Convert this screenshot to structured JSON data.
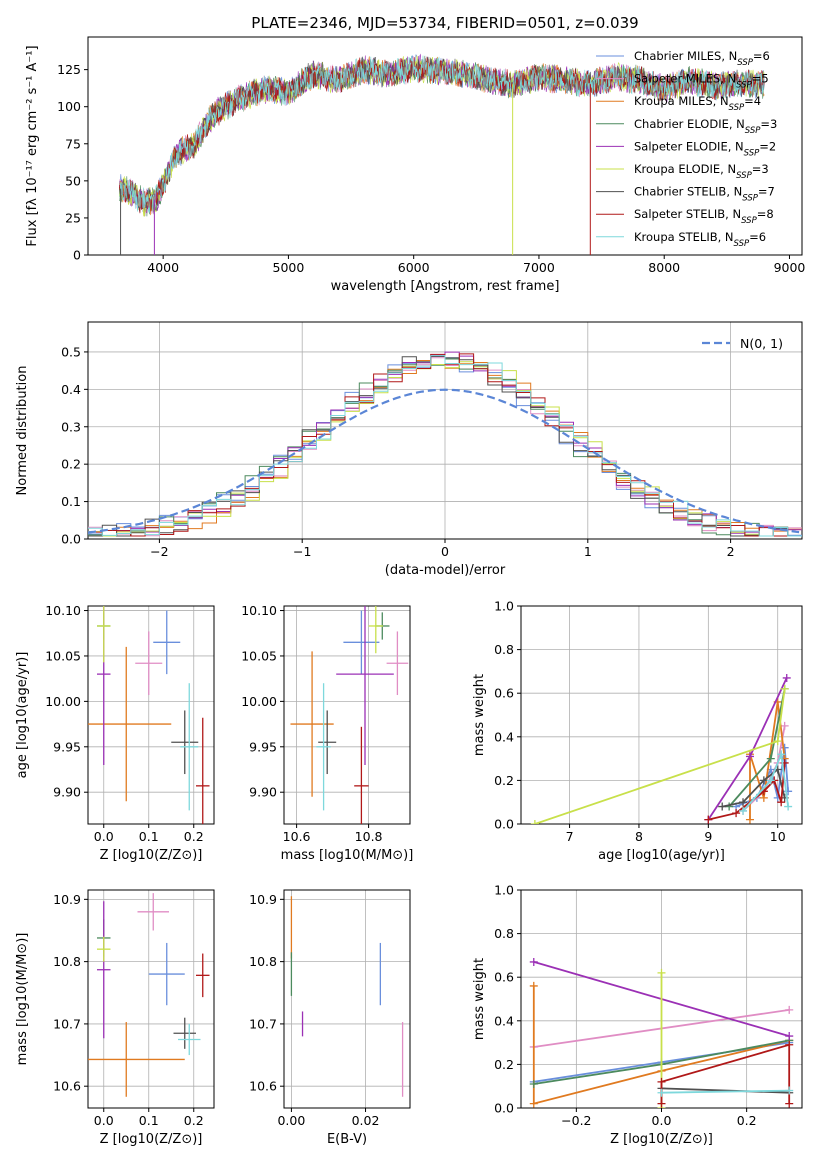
{
  "title": "PLATE=2346, MJD=53734, FIBERID=0501, z=0.039",
  "models": [
    {
      "name": "Chabrier MILES, N_SSP=6",
      "base": "Chabrier MILES, N",
      "nssp": "=6",
      "color": "#6a8fdc"
    },
    {
      "name": "Salpeter MILES, N_SSP=5",
      "base": "Salpeter MILES, N",
      "nssp": "=5",
      "color": "#e08dc4"
    },
    {
      "name": "Kroupa MILES, N_SSP=4",
      "base": "Kroupa MILES, N",
      "nssp": "=4",
      "color": "#e07a20"
    },
    {
      "name": "Chabrier ELODIE, N_SSP=3",
      "base": "Chabrier ELODIE, N",
      "nssp": "=3",
      "color": "#4c8a5e"
    },
    {
      "name": "Salpeter ELODIE, N_SSP=2",
      "base": "Salpeter ELODIE, N",
      "nssp": "=2",
      "color": "#9b30b5"
    },
    {
      "name": "Kroupa ELODIE, N_SSP=3",
      "base": "Kroupa ELODIE, N",
      "nssp": "=3",
      "color": "#c8e04a"
    },
    {
      "name": "Chabrier STELIB, N_SSP=7",
      "base": "Chabrier STELIB, N",
      "nssp": "=7",
      "color": "#505050"
    },
    {
      "name": "Salpeter STELIB, N_SSP=8",
      "base": "Salpeter STELIB, N",
      "nssp": "=8",
      "color": "#b01818"
    },
    {
      "name": "Kroupa STELIB, N_SSP=6",
      "base": "Kroupa STELIB, N",
      "nssp": "=6",
      "color": "#7ed8dc"
    }
  ],
  "chart_data": [
    {
      "type": "line",
      "panel": "spectrum",
      "xlabel": "wavelength [Angstrom, rest frame]",
      "ylabel": "Flux [fλ 10⁻¹⁷ erg cm⁻² s⁻¹ A⁻¹]",
      "xlim": [
        3400,
        9100
      ],
      "ylim": [
        0,
        147
      ],
      "xticks": [
        4000,
        5000,
        6000,
        7000,
        8000,
        9000
      ],
      "yticks": [
        0,
        25,
        50,
        75,
        100,
        125
      ],
      "x": [
        3650,
        3750,
        3850,
        3950,
        4100,
        4250,
        4400,
        4600,
        4800,
        5000,
        5200,
        5400,
        5600,
        5800,
        6000,
        6200,
        6400,
        6600,
        6800,
        7000,
        7200,
        7400,
        7600,
        7800,
        8000,
        8200,
        8400,
        8600,
        8800
      ],
      "y": [
        45,
        42,
        35,
        38,
        68,
        75,
        95,
        105,
        112,
        110,
        122,
        118,
        125,
        122,
        126,
        124,
        122,
        118,
        115,
        120,
        118,
        115,
        120,
        118,
        112,
        118,
        114,
        116,
        115
      ],
      "drops": [
        {
          "x": 3660,
          "to": 0
        },
        {
          "x": 3930,
          "to": 0
        },
        {
          "x": 6790,
          "to": 0
        },
        {
          "x": 7410,
          "to": 0
        }
      ],
      "legend": "top-right",
      "grid": false
    },
    {
      "type": "bar",
      "panel": "residual-histogram",
      "xlabel": "(data-model)/error",
      "ylabel": "Normed distribution",
      "xlim": [
        -2.5,
        2.5
      ],
      "ylim": [
        0,
        0.58
      ],
      "xticks": [
        -2,
        -1,
        0,
        1,
        2
      ],
      "yticks": [
        0.0,
        0.1,
        0.2,
        0.3,
        0.4,
        0.5
      ],
      "bin_width": 0.1,
      "histogram_shape": "histograms per model follow a normal curve of sigma 0.85 with peak about 0.48",
      "reference_curve": {
        "label": "N(0, 1)",
        "mean": 0,
        "sigma": 1
      },
      "grid": true
    },
    {
      "type": "scatter",
      "panel": "age-vs-Z",
      "xlabel": "Z [log10(Z/Z⊙)]",
      "ylabel": "age  [log10(age/yr)]",
      "xlim": [
        -0.035,
        0.245
      ],
      "ylim": [
        9.865,
        10.105
      ],
      "xticks": [
        0.0,
        0.1,
        0.2
      ],
      "yticks": [
        9.9,
        9.95,
        10.0,
        10.05,
        10.1
      ],
      "points": [
        {
          "x": 0.14,
          "xerr": 0.03,
          "y": 10.065,
          "yerr": 0.035
        },
        {
          "x": 0.1,
          "xerr": 0.03,
          "y": 10.042,
          "yerr": 0.035
        },
        {
          "x": 0.05,
          "xerr": 0.1,
          "y": 9.975,
          "yerr": 0.085
        },
        {
          "x": 0.0,
          "xerr": 0.015,
          "y": 10.083,
          "yerr": 0.015
        },
        {
          "x": 0.0,
          "xerr": 0.015,
          "y": 10.03,
          "yerr": 0.1
        },
        {
          "x": 0.0,
          "xerr": 0.015,
          "y": 10.083,
          "yerr": 0.04
        },
        {
          "x": 0.18,
          "xerr": 0.03,
          "y": 9.955,
          "yerr": 0.035
        },
        {
          "x": 0.22,
          "xerr": 0.015,
          "y": 9.907,
          "yerr": 0.075
        },
        {
          "x": 0.19,
          "xerr": 0.02,
          "y": 9.95,
          "yerr": 0.07
        }
      ],
      "grid": true
    },
    {
      "type": "scatter",
      "panel": "age-vs-mass",
      "xlabel": "mass [log10(M/M⊙)]",
      "ylabel": "",
      "xlim": [
        10.565,
        10.915
      ],
      "ylim": [
        9.865,
        10.105
      ],
      "xticks": [
        10.6,
        10.8
      ],
      "yticks": [
        9.9,
        9.95,
        10.0,
        10.05,
        10.1
      ],
      "points": [
        {
          "x": 10.78,
          "xerr": 0.05,
          "y": 10.065,
          "yerr": 0.035
        },
        {
          "x": 10.88,
          "xerr": 0.03,
          "y": 10.042,
          "yerr": 0.035
        },
        {
          "x": 10.643,
          "xerr": 0.06,
          "y": 9.975,
          "yerr": 0.08
        },
        {
          "x": 10.838,
          "xerr": 0.02,
          "y": 10.083,
          "yerr": 0.015
        },
        {
          "x": 10.79,
          "xerr": 0.08,
          "y": 10.03,
          "yerr": 0.1
        },
        {
          "x": 10.82,
          "xerr": 0.02,
          "y": 10.083,
          "yerr": 0.03
        },
        {
          "x": 10.685,
          "xerr": 0.025,
          "y": 9.955,
          "yerr": 0.035
        },
        {
          "x": 10.78,
          "xerr": 0.02,
          "y": 9.907,
          "yerr": 0.065
        },
        {
          "x": 10.675,
          "xerr": 0.02,
          "y": 9.95,
          "yerr": 0.07
        }
      ],
      "grid": true
    },
    {
      "type": "line",
      "panel": "mass-weight-vs-age",
      "xlabel": "age  [log10(age/yr)]",
      "ylabel": "mass weight",
      "xlim": [
        6.3,
        10.35
      ],
      "ylim": [
        0,
        1.0
      ],
      "xticks": [
        7,
        8,
        9,
        10
      ],
      "yticks": [
        0.0,
        0.2,
        0.4,
        0.6,
        0.8,
        1.0
      ],
      "series": [
        {
          "x": [
            9.4,
            9.7,
            9.9,
            10.0,
            10.1,
            10.15
          ],
          "y": [
            0.08,
            0.12,
            0.25,
            0.12,
            0.35,
            0.15
          ]
        },
        {
          "x": [
            9.5,
            9.8,
            10.0,
            10.1
          ],
          "y": [
            0.06,
            0.15,
            0.28,
            0.45
          ]
        },
        {
          "x": [
            9.6,
            9.6,
            9.8,
            10.0,
            10.1
          ],
          "y": [
            0.02,
            0.32,
            0.12,
            0.56,
            0.3
          ]
        },
        {
          "x": [
            9.3,
            9.9,
            10.1
          ],
          "y": [
            0.08,
            0.3,
            0.62
          ]
        },
        {
          "x": [
            9.0,
            9.6,
            10.13
          ],
          "y": [
            0.02,
            0.31,
            0.67
          ]
        },
        {
          "x": [
            6.5,
            10.0,
            10.1
          ],
          "y": [
            0.0,
            0.38,
            0.62
          ]
        },
        {
          "x": [
            9.2,
            9.5,
            9.8,
            10.0,
            10.1
          ],
          "y": [
            0.08,
            0.1,
            0.2,
            0.25,
            0.12
          ]
        },
        {
          "x": [
            9.0,
            9.4,
            9.8,
            9.95,
            10.05,
            10.1
          ],
          "y": [
            0.02,
            0.05,
            0.15,
            0.2,
            0.1,
            0.28
          ]
        },
        {
          "x": [
            9.5,
            9.9,
            10.05,
            10.15
          ],
          "y": [
            0.06,
            0.2,
            0.32,
            0.08
          ]
        }
      ],
      "grid": true
    },
    {
      "type": "scatter",
      "panel": "mass-vs-Z",
      "xlabel": "Z [log10(Z/Z⊙)]",
      "ylabel": "mass [log10(M/M⊙)]",
      "xlim": [
        -0.035,
        0.245
      ],
      "ylim": [
        10.565,
        10.915
      ],
      "xticks": [
        0.0,
        0.1,
        0.2
      ],
      "yticks": [
        10.6,
        10.7,
        10.8,
        10.9
      ],
      "points": [
        {
          "x": 0.14,
          "xerr": 0.04,
          "y": 10.78,
          "yerr": 0.05
        },
        {
          "x": 0.11,
          "xerr": 0.035,
          "y": 10.88,
          "yerr": 0.03
        },
        {
          "x": 0.05,
          "xerr": 0.13,
          "y": 10.643,
          "yerr": 0.06
        },
        {
          "x": 0.0,
          "xerr": 0.015,
          "y": 10.838,
          "yerr": 0.03
        },
        {
          "x": 0.0,
          "xerr": 0.015,
          "y": 10.787,
          "yerr": 0.11
        },
        {
          "x": 0.0,
          "xerr": 0.015,
          "y": 10.82,
          "yerr": 0.02
        },
        {
          "x": 0.18,
          "xerr": 0.025,
          "y": 10.685,
          "yerr": 0.025
        },
        {
          "x": 0.22,
          "xerr": 0.015,
          "y": 10.778,
          "yerr": 0.035
        },
        {
          "x": 0.19,
          "xerr": 0.025,
          "y": 10.675,
          "yerr": 0.025
        }
      ],
      "grid": true
    },
    {
      "type": "scatter",
      "panel": "mass-vs-EBV",
      "xlabel": "E(B-V)",
      "ylabel": "",
      "xlim": [
        -0.002,
        0.032
      ],
      "ylim": [
        10.565,
        10.915
      ],
      "xticks": [
        0.0,
        0.02
      ],
      "yticks": [
        10.6,
        10.7,
        10.8,
        10.9
      ],
      "points": [
        {
          "x": 0.024,
          "xerr": 0,
          "y": 10.78,
          "yerr": 0.05
        },
        {
          "x": 0.03,
          "xerr": 0,
          "y": 10.643,
          "yerr": 0.06
        },
        {
          "x": 0.0,
          "xerr": 0,
          "y": 10.855,
          "yerr": 0.05
        },
        {
          "x": 0.0,
          "xerr": 0,
          "y": 10.78,
          "yerr": 0.035
        },
        {
          "x": 0.003,
          "xerr": 0,
          "y": 10.7,
          "yerr": 0.02
        }
      ],
      "grid": true
    },
    {
      "type": "line",
      "panel": "mass-weight-vs-Z",
      "xlabel": "Z [log10(Z/Z⊙)]",
      "ylabel": "mass weight",
      "xlim": [
        -0.33,
        0.33
      ],
      "ylim": [
        0,
        1.0
      ],
      "xticks": [
        -0.2,
        0.0,
        0.2
      ],
      "yticks": [
        0.0,
        0.2,
        0.4,
        0.6,
        0.8,
        1.0
      ],
      "series": [
        {
          "x": [
            -0.3,
            0.0,
            0.3
          ],
          "y": [
            0.12,
            0.21,
            0.3
          ]
        },
        {
          "x": [
            -0.3,
            0.3
          ],
          "y": [
            0.28,
            0.45
          ]
        },
        {
          "x": [
            -0.3,
            -0.3,
            0.0,
            0.3
          ],
          "y": [
            0.56,
            0.02,
            0.17,
            0.31
          ]
        },
        {
          "x": [
            -0.3,
            0.0,
            0.3
          ],
          "y": [
            0.11,
            0.2,
            0.31
          ]
        },
        {
          "x": [
            -0.3,
            0.3
          ],
          "y": [
            0.67,
            0.33
          ]
        },
        {
          "x": [
            0.0,
            0.0
          ],
          "y": [
            0.0,
            0.62
          ]
        },
        {
          "x": [
            0.0,
            0.3
          ],
          "y": [
            0.09,
            0.07
          ]
        },
        {
          "x": [
            0.0,
            0.0,
            0.3,
            0.3
          ],
          "y": [
            0.02,
            0.12,
            0.29,
            0.02
          ]
        },
        {
          "x": [
            0.0,
            0.3
          ],
          "y": [
            0.07,
            0.08
          ]
        }
      ],
      "grid": true
    }
  ]
}
